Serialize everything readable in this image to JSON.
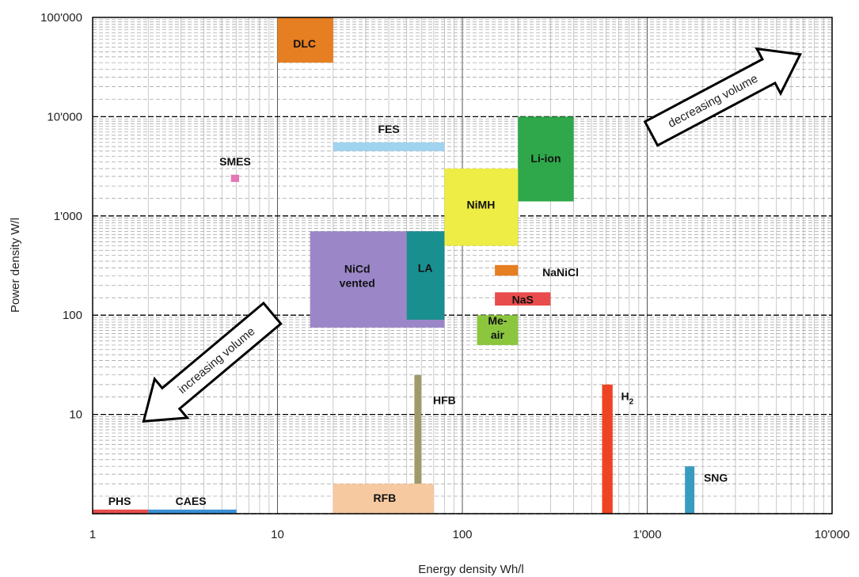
{
  "chart_data": {
    "type": "scatter",
    "xlabel": "Energy density Wh/l",
    "ylabel": "Power density  W/l",
    "x_scale": "log",
    "y_scale": "log",
    "xlim": [
      1,
      10000
    ],
    "ylim": [
      1,
      100000
    ],
    "grid": true,
    "x_ticks": [
      {
        "value": 1,
        "label": "1"
      },
      {
        "value": 10,
        "label": "10"
      },
      {
        "value": 100,
        "label": "100"
      },
      {
        "value": 1000,
        "label": "1'000"
      },
      {
        "value": 10000,
        "label": "10'000"
      }
    ],
    "y_ticks": [
      {
        "value": 10,
        "label": "10"
      },
      {
        "value": 100,
        "label": "100"
      },
      {
        "value": 1000,
        "label": "1'000"
      },
      {
        "value": 10000,
        "label": "10'000"
      },
      {
        "value": 100000,
        "label": "100'000"
      }
    ],
    "regions": [
      {
        "label": "DLC",
        "x": [
          10,
          20
        ],
        "y": [
          35000,
          100000
        ],
        "color": "#e67e22"
      },
      {
        "label": "FES",
        "x": [
          20,
          80
        ],
        "y": [
          4500,
          5500
        ],
        "color": "#9fd3f0"
      },
      {
        "label": "SMES",
        "x": [
          5.6,
          6.2
        ],
        "y": [
          2200,
          2600
        ],
        "color": "#e377b3"
      },
      {
        "label": "Li-ion",
        "x": [
          200,
          400
        ],
        "y": [
          1400,
          10000
        ],
        "color": "#2ea84a"
      },
      {
        "label": "NiMH",
        "x": [
          80,
          200
        ],
        "y": [
          500,
          3000
        ],
        "color": "#eded45"
      },
      {
        "label": "NiCd vented",
        "x": [
          15,
          80
        ],
        "y": [
          75,
          700
        ],
        "color": "#9b87c8"
      },
      {
        "label": "LA",
        "x": [
          50,
          80
        ],
        "y": [
          90,
          700
        ],
        "color": "#1a8f8f"
      },
      {
        "label": "NaNiCl",
        "x": [
          150,
          200
        ],
        "y": [
          250,
          320
        ],
        "color": "#e67e22"
      },
      {
        "label": "NaS",
        "x": [
          150,
          300
        ],
        "y": [
          125,
          170
        ],
        "color": "#e84c4c"
      },
      {
        "label": "Me-air",
        "x": [
          120,
          200
        ],
        "y": [
          50,
          100
        ],
        "color": "#8cc63f"
      },
      {
        "label": "HFB",
        "x": [
          55,
          60
        ],
        "y": [
          1,
          25
        ],
        "color": "#a09a6a"
      },
      {
        "label": "H",
        "x": [
          570,
          650
        ],
        "y": [
          1,
          20
        ],
        "color": "#ee4423"
      },
      {
        "label": "SNG",
        "x": [
          1600,
          1800
        ],
        "y": [
          1,
          3
        ],
        "color": "#3a9bc1"
      },
      {
        "label": "RFB",
        "x": [
          20,
          70
        ],
        "y": [
          1,
          2
        ],
        "color": "#f7c9a0"
      },
      {
        "label": "PHS",
        "x": [
          1,
          2
        ],
        "y": [
          1,
          1.1
        ],
        "color": "#e84c4c"
      },
      {
        "label": "CAES",
        "x": [
          2,
          6
        ],
        "y": [
          1,
          1.1
        ],
        "color": "#3a8fd6"
      }
    ],
    "annotations": [
      {
        "text": "decreasing volume",
        "direction": "up-right"
      },
      {
        "text": "increasing volume",
        "direction": "down-left"
      }
    ]
  },
  "labels": {
    "h2_subscript": "2"
  }
}
